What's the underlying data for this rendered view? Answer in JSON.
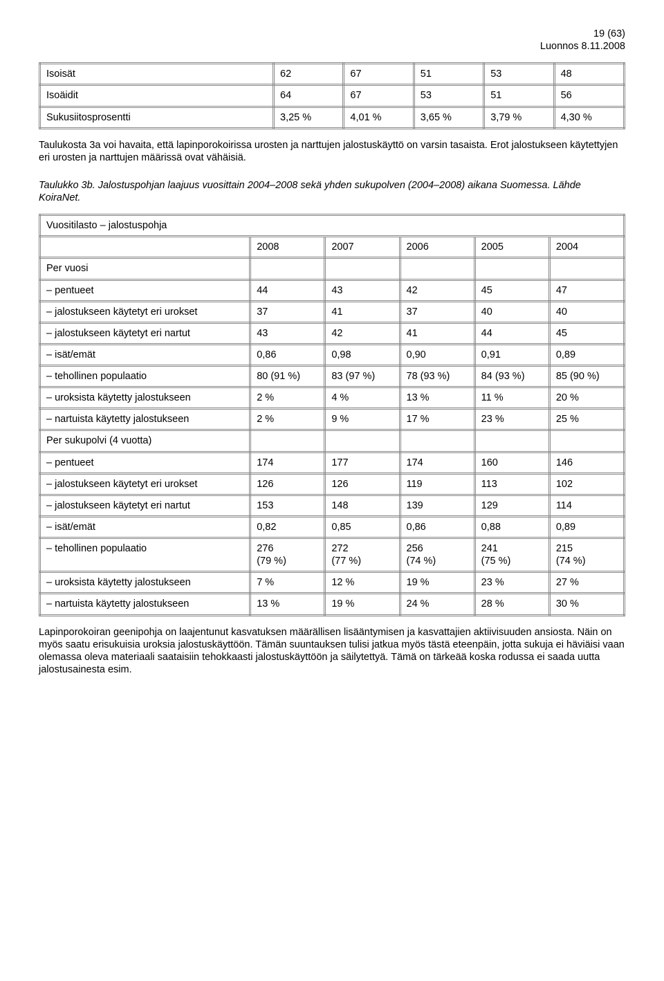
{
  "header": {
    "page_ref": "19 (63)",
    "draft_date": "Luonnos 8.11.2008"
  },
  "table1": {
    "rows": [
      {
        "label": "Isoisät",
        "c": [
          "62",
          "67",
          "51",
          "53",
          "48"
        ]
      },
      {
        "label": "Isoäidit",
        "c": [
          "64",
          "67",
          "53",
          "51",
          "56"
        ]
      },
      {
        "label": "Sukusiitosprosentti",
        "c": [
          "3,25 %",
          "4,01 %",
          "3,65 %",
          "3,79 %",
          "4,30 %"
        ]
      }
    ]
  },
  "para1": "Taulukosta 3a voi havaita, että lapinporokoirissa urosten ja narttujen jalostuskäyttö on varsin tasaista. Erot jalostukseen käytettyjen eri urosten ja narttujen määrissä ovat vähäisiä.",
  "table2_title": "Taulukko 3b. Jalostuspohjan laajuus vuosittain 2004–2008 sekä yhden sukupolven (2004–2008) aikana Suomessa. Lähde KoiraNet.",
  "table2": {
    "title_row": "Vuositilasto – jalostuspohja",
    "years": [
      "2008",
      "2007",
      "2006",
      "2005",
      "2004"
    ],
    "section1": "Per vuosi",
    "section2": "Per sukupolvi (4 vuotta)",
    "rows1": [
      {
        "label": "– pentueet",
        "c": [
          "44",
          "43",
          "42",
          "45",
          "47"
        ]
      },
      {
        "label": "– jalostukseen käytetyt eri urokset",
        "c": [
          "37",
          "41",
          "37",
          "40",
          "40"
        ]
      },
      {
        "label": "– jalostukseen käytetyt eri nartut",
        "c": [
          "43",
          "42",
          "41",
          "44",
          "45"
        ]
      },
      {
        "label": "– isät/emät",
        "c": [
          "0,86",
          "0,98",
          "0,90",
          "0,91",
          "0,89"
        ]
      },
      {
        "label": "– tehollinen populaatio",
        "c": [
          "80 (91 %)",
          "83 (97 %)",
          "78 (93 %)",
          "84 (93 %)",
          "85 (90 %)"
        ]
      },
      {
        "label": "– uroksista käytetty jalostukseen",
        "c": [
          "2 %",
          "4 %",
          "13 %",
          "11 %",
          "20 %"
        ]
      },
      {
        "label": "– nartuista käytetty jalostukseen",
        "c": [
          "2 %",
          "9 %",
          "17 %",
          "23 %",
          "25 %"
        ]
      }
    ],
    "rows2": [
      {
        "label": "– pentueet",
        "c": [
          "174",
          "177",
          "174",
          "160",
          "146"
        ]
      },
      {
        "label": "– jalostukseen käytetyt eri urokset",
        "c": [
          "126",
          "126",
          "119",
          "113",
          "102"
        ]
      },
      {
        "label": "– jalostukseen käytetyt eri nartut",
        "c": [
          "153",
          "148",
          "139",
          "129",
          "114"
        ]
      },
      {
        "label": "– isät/emät",
        "c": [
          "0,82",
          "0,85",
          "0,86",
          "0,88",
          "0,89"
        ]
      },
      {
        "label": "– tehollinen populaatio",
        "c": [
          "276\n(79 %)",
          "272\n(77 %)",
          "256\n(74 %)",
          "241\n(75 %)",
          "215\n(74 %)"
        ]
      },
      {
        "label": "– uroksista käytetty jalostukseen",
        "c": [
          "7 %",
          "12 %",
          "19 %",
          "23 %",
          "27 %"
        ]
      },
      {
        "label": "– nartuista käytetty jalostukseen",
        "c": [
          "13 %",
          "19 %",
          "24 %",
          "28 %",
          "30 %"
        ]
      }
    ]
  },
  "para2": "Lapinporokoiran geenipohja on laajentunut kasvatuksen määrällisen lisääntymisen ja kasvattajien aktiivisuuden ansiosta. Näin on myös saatu erisukuisia uroksia jalostuskäyttöön. Tämän suuntauksen tulisi jatkua myös tästä eteenpäin, jotta sukuja ei häviäisi vaan olemassa oleva materiaali saataisiin tehokkaasti jalostuskäyttöön ja säilytettyä. Tämä on tärkeää koska rodussa ei saada uutta jalostusainesta esim."
}
